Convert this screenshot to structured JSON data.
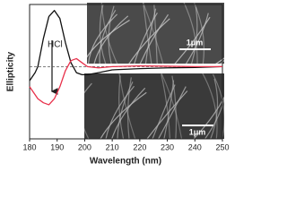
{
  "chart_data": {
    "type": "line",
    "xlabel": "Wavelength (nm)",
    "ylabel": "Ellipticity",
    "annotation": "HCl",
    "inset_labels": [
      "1μm",
      "1μm"
    ],
    "xlim": [
      180,
      250
    ],
    "xticks": [
      180,
      190,
      200,
      210,
      220,
      230,
      240,
      250
    ],
    "ylim": [
      -18,
      15.5
    ],
    "x": [
      180,
      182,
      183,
      185,
      187,
      189,
      191,
      193,
      195,
      197,
      199,
      201,
      205,
      210,
      220,
      230,
      240,
      250
    ],
    "series": [
      {
        "color": "#111111",
        "values": [
          -3.5,
          -1.5,
          0,
          7,
          12.5,
          14,
          12,
          6,
          1,
          -1.5,
          -2,
          -2,
          -1.5,
          -0.8,
          -0.5,
          -0.3,
          -0.2,
          0
        ]
      },
      {
        "color": "#e8304a",
        "values": [
          -5,
          -7,
          -8,
          -9,
          -9.5,
          -8,
          -5,
          -1,
          1.5,
          2,
          1,
          0,
          -0.3,
          0,
          0.2,
          0.1,
          0,
          0
        ]
      }
    ]
  }
}
